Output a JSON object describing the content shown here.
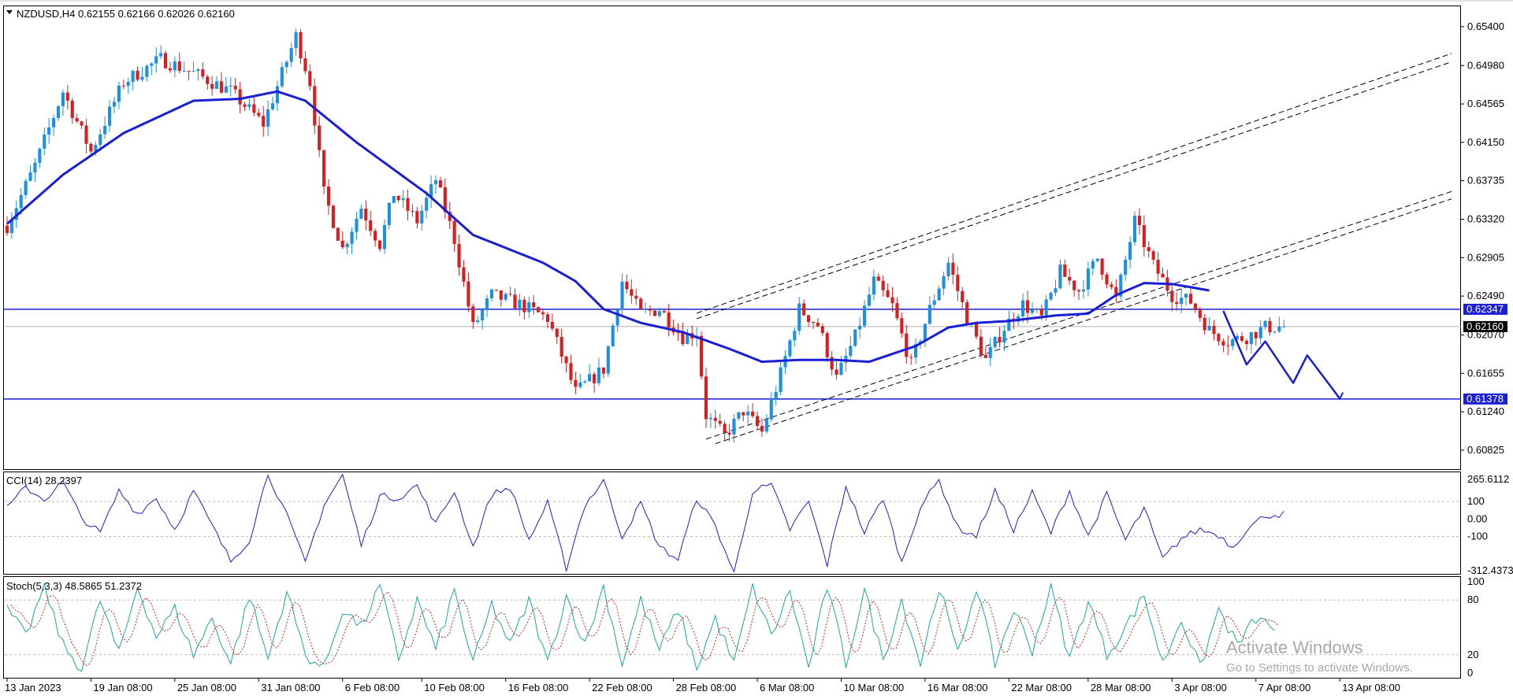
{
  "chart_data": {
    "type": "candlestick",
    "symbol_header": "NZDUSD,H4  0.62155 0.62166 0.62026 0.62160",
    "colors": {
      "bull": "#1f8fe0",
      "bear": "#d42020",
      "moving_average": "#1a1fd6",
      "horizontal_levels": "#1a1fd6",
      "cci_line": "#1a1fd6",
      "stoch_main": "#1aa8a0",
      "stoch_signal": "#d42020",
      "channel_lines": "#000000",
      "forecast_path": "#1a1fd6"
    },
    "price_axis": {
      "ylim": [
        0.6062,
        0.6562
      ],
      "ticks": [
        "0.65400",
        "0.64980",
        "0.64565",
        "0.64150",
        "0.63735",
        "0.63320",
        "0.62905",
        "0.62490",
        "0.62070",
        "0.61655",
        "0.61240",
        "0.60825"
      ],
      "current_price_label": "0.62160",
      "current_price": 0.6216
    },
    "time_axis": {
      "labels": [
        "13 Jan 2023",
        "19 Jan 08:00",
        "25 Jan 08:00",
        "31 Jan 08:00",
        "6 Feb 08:00",
        "10 Feb 08:00",
        "16 Feb 08:00",
        "22 Feb 08:00",
        "28 Feb 08:00",
        "6 Mar 08:00",
        "10 Mar 08:00",
        "16 Mar 08:00",
        "22 Mar 08:00",
        "28 Mar 08:00",
        "3 Apr 08:00",
        "7 Apr 08:00",
        "13 Apr 08:00"
      ],
      "bar_count": 312
    },
    "price_path_keypoints": [
      [
        0,
        0.6325
      ],
      [
        6,
        0.639
      ],
      [
        12,
        0.647
      ],
      [
        18,
        0.6405
      ],
      [
        25,
        0.648
      ],
      [
        33,
        0.6505
      ],
      [
        40,
        0.649
      ],
      [
        48,
        0.647
      ],
      [
        55,
        0.6435
      ],
      [
        62,
        0.653
      ],
      [
        65,
        0.648
      ],
      [
        68,
        0.636
      ],
      [
        72,
        0.63
      ],
      [
        76,
        0.6345
      ],
      [
        80,
        0.6305
      ],
      [
        83,
        0.636
      ],
      [
        88,
        0.633
      ],
      [
        92,
        0.6375
      ],
      [
        96,
        0.631
      ],
      [
        100,
        0.6215
      ],
      [
        104,
        0.625
      ],
      [
        110,
        0.624
      ],
      [
        116,
        0.6225
      ],
      [
        122,
        0.6145
      ],
      [
        128,
        0.617
      ],
      [
        132,
        0.6265
      ],
      [
        136,
        0.623
      ],
      [
        140,
        0.6235
      ],
      [
        145,
        0.6205
      ],
      [
        148,
        0.621
      ],
      [
        150,
        0.612
      ],
      [
        154,
        0.6098
      ],
      [
        158,
        0.6125
      ],
      [
        162,
        0.6102
      ],
      [
        166,
        0.6165
      ],
      [
        170,
        0.6235
      ],
      [
        174,
        0.6218
      ],
      [
        178,
        0.616
      ],
      [
        182,
        0.6205
      ],
      [
        186,
        0.6265
      ],
      [
        190,
        0.6238
      ],
      [
        194,
        0.6175
      ],
      [
        198,
        0.6235
      ],
      [
        202,
        0.6285
      ],
      [
        206,
        0.6225
      ],
      [
        210,
        0.618
      ],
      [
        214,
        0.6215
      ],
      [
        218,
        0.624
      ],
      [
        222,
        0.6225
      ],
      [
        226,
        0.6275
      ],
      [
        230,
        0.6255
      ],
      [
        234,
        0.629
      ],
      [
        238,
        0.6245
      ],
      [
        242,
        0.633
      ],
      [
        246,
        0.6282
      ],
      [
        250,
        0.625
      ],
      [
        254,
        0.6243
      ],
      [
        258,
        0.6212
      ],
      [
        262,
        0.62
      ],
      [
        266,
        0.6205
      ],
      [
        270,
        0.6215
      ],
      [
        274,
        0.6216
      ]
    ],
    "moving_average_keypoints": [
      [
        0,
        0.6327
      ],
      [
        12,
        0.638
      ],
      [
        25,
        0.6425
      ],
      [
        40,
        0.646
      ],
      [
        50,
        0.6462
      ],
      [
        58,
        0.647
      ],
      [
        64,
        0.646
      ],
      [
        75,
        0.6415
      ],
      [
        90,
        0.636
      ],
      [
        100,
        0.6315
      ],
      [
        115,
        0.6285
      ],
      [
        122,
        0.6265
      ],
      [
        128,
        0.6235
      ],
      [
        136,
        0.622
      ],
      [
        145,
        0.621
      ],
      [
        155,
        0.6192
      ],
      [
        162,
        0.6178
      ],
      [
        170,
        0.618
      ],
      [
        178,
        0.618
      ],
      [
        185,
        0.6178
      ],
      [
        195,
        0.6195
      ],
      [
        202,
        0.6215
      ],
      [
        208,
        0.622
      ],
      [
        215,
        0.6222
      ],
      [
        225,
        0.6228
      ],
      [
        232,
        0.623
      ],
      [
        238,
        0.625
      ],
      [
        244,
        0.6263
      ],
      [
        250,
        0.6262
      ],
      [
        258,
        0.6255
      ]
    ],
    "horizontal_levels": [
      {
        "price": 0.62347,
        "label": "0.62347"
      },
      {
        "price": 0.61378,
        "label": "0.61378"
      }
    ],
    "channel_lines": [
      {
        "from": [
          148,
          0.62305
        ],
        "to": [
          310,
          0.6511
        ]
      },
      {
        "from": [
          148,
          0.62245
        ],
        "to": [
          310,
          0.6502
        ]
      },
      {
        "from": [
          150,
          0.60945
        ],
        "to": [
          310,
          0.6362
        ]
      },
      {
        "from": [
          152,
          0.60895
        ],
        "to": [
          310,
          0.6354
        ]
      }
    ],
    "forecast_path": [
      [
        261,
        0.6233
      ],
      [
        266,
        0.6175
      ],
      [
        270,
        0.62
      ],
      [
        276,
        0.6155
      ],
      [
        279,
        0.6185
      ],
      [
        285,
        0.6145
      ],
      [
        286,
        0.6138
      ]
    ],
    "cci": {
      "header": "CCI(14) 28.2397",
      "ticks": [
        "265.6112",
        "100",
        "0.00",
        "-100",
        "-312.4373"
      ],
      "ylim": [
        -312.4373,
        265.6112
      ],
      "levels": [
        100,
        -100
      ],
      "keypoints": [
        [
          0,
          60
        ],
        [
          4,
          180
        ],
        [
          8,
          110
        ],
        [
          12,
          210
        ],
        [
          16,
          5
        ],
        [
          20,
          -80
        ],
        [
          24,
          160
        ],
        [
          28,
          30
        ],
        [
          32,
          120
        ],
        [
          36,
          -60
        ],
        [
          40,
          160
        ],
        [
          44,
          -40
        ],
        [
          48,
          -240
        ],
        [
          52,
          -120
        ],
        [
          56,
          260
        ],
        [
          60,
          20
        ],
        [
          64,
          -250
        ],
        [
          68,
          80
        ],
        [
          72,
          250
        ],
        [
          76,
          -150
        ],
        [
          80,
          130
        ],
        [
          84,
          120
        ],
        [
          88,
          190
        ],
        [
          92,
          -30
        ],
        [
          96,
          160
        ],
        [
          100,
          -160
        ],
        [
          104,
          140
        ],
        [
          108,
          180
        ],
        [
          112,
          -120
        ],
        [
          116,
          90
        ],
        [
          120,
          -280
        ],
        [
          124,
          80
        ],
        [
          128,
          220
        ],
        [
          132,
          -100
        ],
        [
          136,
          90
        ],
        [
          140,
          -160
        ],
        [
          144,
          -230
        ],
        [
          148,
          120
        ],
        [
          152,
          -40
        ],
        [
          156,
          -310
        ],
        [
          160,
          160
        ],
        [
          164,
          190
        ],
        [
          168,
          -60
        ],
        [
          172,
          100
        ],
        [
          176,
          -260
        ],
        [
          180,
          190
        ],
        [
          184,
          -80
        ],
        [
          188,
          120
        ],
        [
          192,
          -250
        ],
        [
          196,
          70
        ],
        [
          200,
          220
        ],
        [
          204,
          -50
        ],
        [
          208,
          -100
        ],
        [
          212,
          160
        ],
        [
          216,
          -60
        ],
        [
          220,
          150
        ],
        [
          224,
          -80
        ],
        [
          228,
          160
        ],
        [
          232,
          -100
        ],
        [
          236,
          140
        ],
        [
          240,
          -120
        ],
        [
          244,
          60
        ],
        [
          248,
          -230
        ],
        [
          252,
          -110
        ],
        [
          256,
          -60
        ],
        [
          260,
          -90
        ],
        [
          263,
          -160
        ],
        [
          266,
          -60
        ],
        [
          270,
          20
        ],
        [
          274,
          28
        ]
      ]
    },
    "stochastic": {
      "header": "Stoch(5,3,3) 48.5865 51.2372",
      "ticks": [
        "100",
        "80",
        "20",
        "0"
      ],
      "ylim": [
        0,
        100
      ],
      "levels": [
        80,
        20
      ],
      "keypoints": [
        [
          0,
          70
        ],
        [
          4,
          40
        ],
        [
          8,
          95
        ],
        [
          12,
          30
        ],
        [
          16,
          5
        ],
        [
          20,
          80
        ],
        [
          24,
          20
        ],
        [
          28,
          95
        ],
        [
          32,
          40
        ],
        [
          36,
          70
        ],
        [
          40,
          20
        ],
        [
          44,
          60
        ],
        [
          48,
          10
        ],
        [
          52,
          85
        ],
        [
          56,
          15
        ],
        [
          60,
          90
        ],
        [
          64,
          20
        ],
        [
          68,
          5
        ],
        [
          72,
          70
        ],
        [
          76,
          50
        ],
        [
          80,
          95
        ],
        [
          84,
          15
        ],
        [
          88,
          80
        ],
        [
          92,
          25
        ],
        [
          96,
          90
        ],
        [
          100,
          10
        ],
        [
          104,
          75
        ],
        [
          108,
          30
        ],
        [
          112,
          80
        ],
        [
          116,
          10
        ],
        [
          120,
          85
        ],
        [
          124,
          30
        ],
        [
          128,
          95
        ],
        [
          132,
          10
        ],
        [
          136,
          80
        ],
        [
          140,
          25
        ],
        [
          144,
          70
        ],
        [
          148,
          5
        ],
        [
          152,
          60
        ],
        [
          156,
          10
        ],
        [
          160,
          95
        ],
        [
          164,
          40
        ],
        [
          168,
          90
        ],
        [
          172,
          5
        ],
        [
          176,
          95
        ],
        [
          180,
          10
        ],
        [
          184,
          90
        ],
        [
          188,
          15
        ],
        [
          192,
          80
        ],
        [
          196,
          10
        ],
        [
          200,
          95
        ],
        [
          204,
          20
        ],
        [
          208,
          95
        ],
        [
          212,
          10
        ],
        [
          216,
          70
        ],
        [
          220,
          25
        ],
        [
          224,
          95
        ],
        [
          228,
          15
        ],
        [
          232,
          80
        ],
        [
          236,
          20
        ],
        [
          240,
          50
        ],
        [
          244,
          85
        ],
        [
          248,
          10
        ],
        [
          252,
          60
        ],
        [
          256,
          5
        ],
        [
          260,
          70
        ],
        [
          264,
          30
        ],
        [
          268,
          60
        ],
        [
          272,
          49
        ]
      ]
    }
  },
  "watermark": {
    "title": "Activate Windows",
    "subtitle": "Go to Settings to activate Windows."
  }
}
